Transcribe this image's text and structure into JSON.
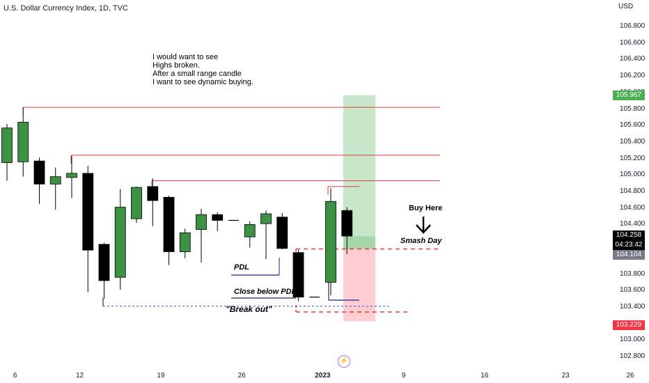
{
  "chart_data": {
    "type": "candlestick",
    "title": "U.S. Dollar Currency Index, 1D, TVC",
    "currency": "USD",
    "ylim": [
      102.75,
      106.95
    ],
    "y_ticks": [
      "102.800",
      "103.000",
      "103.200",
      "103.400",
      "103.600",
      "103.800",
      "104.000",
      "104.200",
      "104.400",
      "104.600",
      "104.800",
      "105.000",
      "105.200",
      "105.400",
      "105.600",
      "105.800",
      "106.000",
      "106.200",
      "106.400",
      "106.600",
      "106.800"
    ],
    "x_ticks": [
      {
        "label": "6",
        "slot": 0.5,
        "bold": false
      },
      {
        "label": "12",
        "slot": 4.5,
        "bold": false
      },
      {
        "label": "19",
        "slot": 9.5,
        "bold": false
      },
      {
        "label": "26",
        "slot": 14.5,
        "bold": false
      },
      {
        "label": "2023",
        "slot": 19.5,
        "bold": true
      },
      {
        "label": "9",
        "slot": 24.5,
        "bold": false
      },
      {
        "label": "16",
        "slot": 29.5,
        "bold": false
      },
      {
        "label": "23",
        "slot": 34.5,
        "bold": false
      },
      {
        "label": "26",
        "slot": 38.5,
        "bold": false
      }
    ],
    "candles": [
      {
        "o": 105.15,
        "h": 105.62,
        "l": 104.93,
        "c": 105.57
      },
      {
        "o": 105.16,
        "h": 105.82,
        "l": 104.98,
        "c": 105.64
      },
      {
        "o": 105.17,
        "h": 105.21,
        "l": 104.65,
        "c": 104.89
      },
      {
        "o": 104.89,
        "h": 105.09,
        "l": 104.58,
        "c": 104.98
      },
      {
        "o": 104.97,
        "h": 105.23,
        "l": 104.72,
        "c": 105.02
      },
      {
        "o": 105.02,
        "h": 105.11,
        "l": 103.58,
        "c": 104.09
      },
      {
        "o": 104.16,
        "h": 104.18,
        "l": 103.5,
        "c": 103.72
      },
      {
        "o": 103.76,
        "h": 104.83,
        "l": 103.61,
        "c": 104.61
      },
      {
        "o": 104.47,
        "h": 104.86,
        "l": 104.42,
        "c": 104.85
      },
      {
        "o": 104.86,
        "h": 104.96,
        "l": 104.38,
        "c": 104.69
      },
      {
        "o": 104.73,
        "h": 104.75,
        "l": 103.91,
        "c": 104.07
      },
      {
        "o": 104.07,
        "h": 104.35,
        "l": 103.99,
        "c": 104.3
      },
      {
        "o": 104.34,
        "h": 104.59,
        "l": 103.94,
        "c": 104.52
      },
      {
        "o": 104.52,
        "h": 104.55,
        "l": 104.32,
        "c": 104.45
      },
      {
        "o": 104.45,
        "h": 104.45,
        "l": 104.45,
        "c": 104.45
      },
      {
        "o": 104.25,
        "h": 104.44,
        "l": 104.12,
        "c": 104.4
      },
      {
        "o": 104.41,
        "h": 104.57,
        "l": 103.98,
        "c": 104.53
      },
      {
        "o": 104.49,
        "h": 104.54,
        "l": 104.1,
        "c": 104.11
      },
      {
        "o": 104.06,
        "h": 104.09,
        "l": 103.47,
        "c": 103.52
      },
      {
        "o": 103.52,
        "h": 103.52,
        "l": 103.52,
        "c": 103.52
      },
      {
        "o": 103.7,
        "h": 104.84,
        "l": 103.54,
        "c": 104.68
      },
      {
        "o": 104.57,
        "h": 104.61,
        "l": 104.04,
        "c": 104.26
      }
    ],
    "colors": {
      "up": "#3d9142",
      "down": "#000000",
      "wick": "#000000"
    }
  },
  "page": {
    "currency": "USD",
    "note_lines": [
      "I would want to see",
      "Highs broken.",
      "",
      "After a small range candle",
      "I want to see dynamic buying."
    ],
    "labels": {
      "pdl": "PDL",
      "close_below_pdl": "Close below PDL",
      "break_out": "\"Break out\"",
      "buy_here": "Buy Here",
      "smash_day": "Smash Day"
    },
    "badges": {
      "target": "105.967",
      "current": "104.258",
      "countdown": "04:23:42",
      "entry": "104.104",
      "stop": "103.229"
    },
    "levels": {
      "high_1": 105.82,
      "high_2": 105.24,
      "high_3": 104.93,
      "high_4": 104.86,
      "entry_line": 104.104,
      "breakout_line": 103.41,
      "lower_dashed": 103.34
    },
    "position": {
      "target": 105.967,
      "entry": 104.258,
      "entry_low": 104.104,
      "stop": 103.229
    },
    "colors": {
      "level_line": "#e53935",
      "dashed_red": "#e53935",
      "dashed_blue": "#3f51b5",
      "pdl_line": "#1a237e",
      "profit_zone": "#c8e6c9",
      "loss_zone": "#ffcdd2",
      "target_badge": "#4caf50",
      "current_badge": "#000000",
      "entry_badge": "#787b86",
      "stop_badge": "#f23645"
    }
  }
}
